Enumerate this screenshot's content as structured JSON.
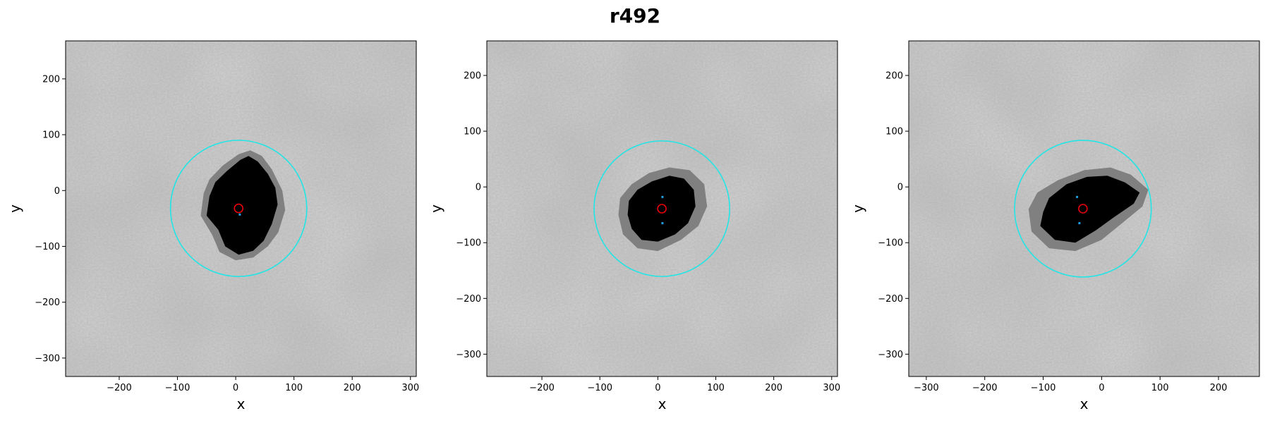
{
  "suptitle": "r492",
  "chart_data": [
    {
      "type": "image",
      "xlabel": "x",
      "ylabel": "y",
      "xlim": [
        -292,
        310
      ],
      "ylim": [
        -333,
        268
      ],
      "xticks": [
        -200,
        -100,
        0,
        100,
        200,
        300
      ],
      "yticks": [
        -300,
        -200,
        -100,
        0,
        100,
        200
      ],
      "tick_labels_x": [
        "−200",
        "−100",
        "0",
        "100",
        "200",
        "300"
      ],
      "tick_labels_y": [
        "−300",
        "−200",
        "−100",
        "0",
        "100",
        "200"
      ],
      "circle": {
        "cx": 5,
        "cy": -32,
        "r": 117
      },
      "center_marker": {
        "x": 5,
        "y": -32
      },
      "blue_points": [
        {
          "x": 7,
          "y": -43
        }
      ],
      "blob_dark": [
        [
          -45,
          -10
        ],
        [
          -35,
          15
        ],
        [
          -15,
          35
        ],
        [
          8,
          55
        ],
        [
          22,
          62
        ],
        [
          38,
          52
        ],
        [
          55,
          30
        ],
        [
          68,
          5
        ],
        [
          72,
          -25
        ],
        [
          62,
          -60
        ],
        [
          48,
          -90
        ],
        [
          30,
          -108
        ],
        [
          5,
          -115
        ],
        [
          -18,
          -100
        ],
        [
          -30,
          -70
        ],
        [
          -50,
          -45
        ]
      ],
      "blob_gray": [
        [
          -55,
          -5
        ],
        [
          -45,
          20
        ],
        [
          -22,
          45
        ],
        [
          5,
          65
        ],
        [
          25,
          72
        ],
        [
          45,
          62
        ],
        [
          62,
          38
        ],
        [
          80,
          0
        ],
        [
          85,
          -35
        ],
        [
          73,
          -75
        ],
        [
          55,
          -100
        ],
        [
          30,
          -120
        ],
        [
          0,
          -125
        ],
        [
          -28,
          -110
        ],
        [
          -40,
          -80
        ],
        [
          -60,
          -45
        ]
      ]
    },
    {
      "type": "image",
      "xlabel": "x",
      "ylabel": "y",
      "xlim": [
        -295,
        310
      ],
      "ylim": [
        -340,
        262
      ],
      "xticks": [
        -200,
        -100,
        0,
        100,
        200,
        300
      ],
      "yticks": [
        -300,
        -200,
        -100,
        0,
        100,
        200
      ],
      "tick_labels_x": [
        "−200",
        "−100",
        "0",
        "100",
        "200",
        "300"
      ],
      "tick_labels_y": [
        "−300",
        "−200",
        "−100",
        "0",
        "100",
        "200"
      ],
      "circle": {
        "cx": 7,
        "cy": -39,
        "r": 117
      },
      "center_marker": {
        "x": 7,
        "y": -39
      },
      "blue_points": [
        {
          "x": 8,
          "y": -18
        },
        {
          "x": 8,
          "y": -65
        }
      ],
      "blob_dark": [
        [
          -50,
          -25
        ],
        [
          -35,
          -5
        ],
        [
          -10,
          10
        ],
        [
          20,
          20
        ],
        [
          45,
          15
        ],
        [
          62,
          -5
        ],
        [
          65,
          -35
        ],
        [
          52,
          -65
        ],
        [
          30,
          -85
        ],
        [
          0,
          -98
        ],
        [
          -28,
          -95
        ],
        [
          -45,
          -75
        ],
        [
          -52,
          -50
        ]
      ],
      "blob_gray": [
        [
          -65,
          -20
        ],
        [
          -45,
          5
        ],
        [
          -15,
          25
        ],
        [
          20,
          35
        ],
        [
          55,
          30
        ],
        [
          80,
          5
        ],
        [
          85,
          -35
        ],
        [
          70,
          -70
        ],
        [
          40,
          -95
        ],
        [
          0,
          -115
        ],
        [
          -35,
          -110
        ],
        [
          -60,
          -85
        ],
        [
          -68,
          -50
        ]
      ]
    },
    {
      "type": "image",
      "xlabel": "x",
      "ylabel": "y",
      "xlim": [
        -330,
        270
      ],
      "ylim": [
        -340,
        262
      ],
      "xticks": [
        -300,
        -200,
        -100,
        0,
        100,
        200
      ],
      "yticks": [
        -300,
        -200,
        -100,
        0,
        100,
        200
      ],
      "tick_labels_x": [
        "−300",
        "−200",
        "−100",
        "0",
        "100",
        "200"
      ],
      "tick_labels_y": [
        "−300",
        "−200",
        "−100",
        "0",
        "100",
        "200"
      ],
      "circle": {
        "cx": -32,
        "cy": -39,
        "r": 117
      },
      "center_marker": {
        "x": -32,
        "y": -39
      },
      "blue_points": [
        {
          "x": -42,
          "y": -18
        },
        {
          "x": -38,
          "y": -65
        }
      ],
      "blob_dark": [
        [
          -100,
          -45
        ],
        [
          -90,
          -20
        ],
        [
          -60,
          5
        ],
        [
          -25,
          18
        ],
        [
          10,
          20
        ],
        [
          40,
          8
        ],
        [
          65,
          -10
        ],
        [
          55,
          -30
        ],
        [
          20,
          -55
        ],
        [
          -10,
          -78
        ],
        [
          -45,
          -100
        ],
        [
          -80,
          -95
        ],
        [
          -105,
          -70
        ]
      ],
      "blob_gray": [
        [
          -125,
          -40
        ],
        [
          -110,
          -10
        ],
        [
          -75,
          12
        ],
        [
          -30,
          30
        ],
        [
          15,
          35
        ],
        [
          50,
          22
        ],
        [
          80,
          -5
        ],
        [
          70,
          -35
        ],
        [
          35,
          -65
        ],
        [
          0,
          -95
        ],
        [
          -45,
          -115
        ],
        [
          -90,
          -110
        ],
        [
          -120,
          -80
        ]
      ]
    }
  ],
  "colors": {
    "background": "#d6d6d6",
    "blob_dark": "#000000",
    "blob_gray": "#808080",
    "circle": "#22e5e5",
    "center_marker": "#e8000b",
    "blue_points": "#1f9fe0"
  }
}
